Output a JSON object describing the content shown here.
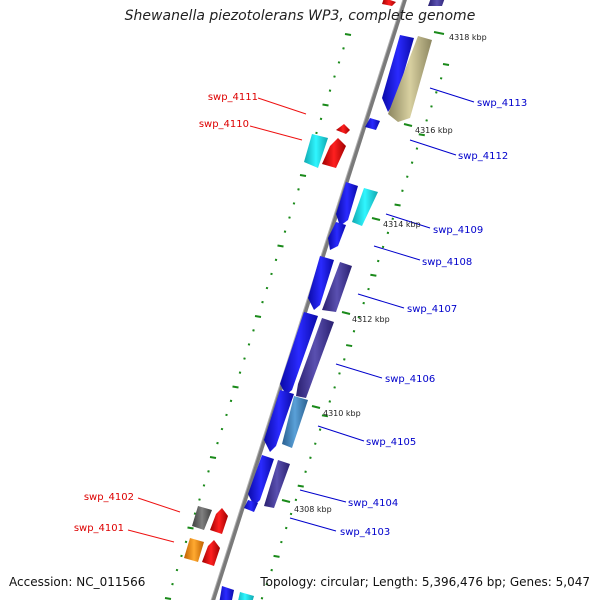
{
  "title": "Shewanella piezotolerans WP3, complete genome",
  "accession": "Accession: NC_011566",
  "topology": "Topology: circular; Length: 5,396,476 bp; Genes: 5,047",
  "kbp_labels": [
    "4318 kbp",
    "4316 kbp",
    "4314 kbp",
    "4312 kbp",
    "4310 kbp",
    "4308 kbp"
  ],
  "genes_left": [
    "swp_4111",
    "swp_4110",
    "swp_4102",
    "swp_4101"
  ],
  "genes_right": [
    "swp_4113",
    "swp_4112",
    "swp_4109",
    "swp_4108",
    "swp_4107",
    "swp_4106",
    "swp_4105",
    "swp_4104",
    "swp_4103"
  ],
  "colors": {
    "forward_label": "#0000cc",
    "reverse_label": "#dd0000",
    "blue": "#1a1aee",
    "slate": "#4a3fa0",
    "cyan": "#22e6ee",
    "teal": "#20c8c8",
    "khaki": "#c8c090",
    "steel": "#4a90c8",
    "red": "#ee1111",
    "orange": "#ff9a1a",
    "gray": "#666666",
    "backbone": "#888888",
    "tick": "#1a8a1a"
  }
}
